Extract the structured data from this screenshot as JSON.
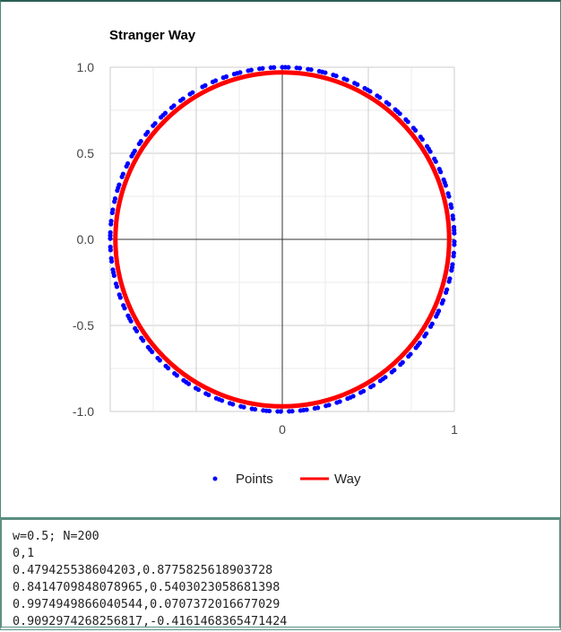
{
  "chart_data": {
    "type": "scatter",
    "title": "Stranger Way",
    "xlabel": "",
    "ylabel": "",
    "xlim": [
      -1,
      1
    ],
    "ylim": [
      -1.0,
      1.0
    ],
    "x_ticks": [
      "0",
      "1"
    ],
    "x_tick_values": [
      0,
      1
    ],
    "y_ticks": [
      "1.0",
      "0.5",
      "0.0",
      "-0.5",
      "-1.0"
    ],
    "y_tick_values": [
      1.0,
      0.5,
      0.0,
      -0.5,
      -1.0
    ],
    "grid": true,
    "legend_position": "bottom",
    "series": [
      {
        "name": "Points",
        "kind": "scatter",
        "color": "#0000ff",
        "count": 200,
        "w": 0.5,
        "radius": 1.0,
        "x_formula": "sin(w*i)",
        "y_formula": "cos(w*i)"
      },
      {
        "name": "Way",
        "kind": "line",
        "color": "#ff0000",
        "radius": 0.97
      }
    ]
  },
  "console": {
    "lines": [
      "w=0.5; N=200",
      "0,1",
      "0.479425538604203,0.8775825618903728",
      "0.8414709848078965,0.5403023058681398",
      "0.9974949866040544,0.0707372016677029",
      "0.9092974268256817,-0.4161468365471424"
    ]
  }
}
